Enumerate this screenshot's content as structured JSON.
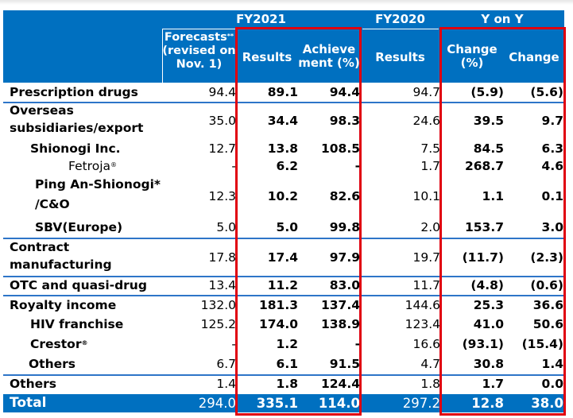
{
  "header": {
    "fy2021": "FY2021",
    "fy2020": "FY2020",
    "yony": "Y on Y",
    "forecasts_line1": "Forecasts",
    "forecasts_sup": "**",
    "forecasts_line2": "(revised on",
    "forecasts_line3": "Nov. 1)",
    "results": "Results",
    "achieve_line1": "Achieve",
    "achieve_line2": "ment (%)",
    "fy2020_results": "Results",
    "change_pct_line1": "Change",
    "change_pct_line2": "(%)",
    "change": "Change"
  },
  "rows": [
    {
      "label": "Prescription drugs",
      "forecast": "94.4",
      "results": "89.1",
      "achievement": "94.4",
      "fy2020": "94.7",
      "change_pct": "(5.9)",
      "change": "(5.6)"
    },
    {
      "label_line1": "Overseas",
      "label_line2": "subsidiaries/export",
      "forecast": "35.0",
      "results": "34.4",
      "achievement": "98.3",
      "fy2020": "24.6",
      "change_pct": "39.5",
      "change": "9.7"
    },
    {
      "label": "Shionogi Inc.",
      "forecast": "12.7",
      "results": "13.8",
      "achievement": "108.5",
      "fy2020": "7.5",
      "change_pct": "84.5",
      "change": "6.3"
    },
    {
      "label": "Fetroja",
      "label_sup": "®",
      "forecast": "-",
      "results": "6.2",
      "achievement": "-",
      "fy2020": "1.7",
      "change_pct": "268.7",
      "change": "4.6"
    },
    {
      "label_line1": "Ping An-Shionogi*",
      "label_line2": "/C&O",
      "forecast": "12.3",
      "results": "10.2",
      "achievement": "82.6",
      "fy2020": "10.1",
      "change_pct": "1.1",
      "change": "0.1"
    },
    {
      "label": "SBV(Europe)",
      "forecast": "5.0",
      "results": "5.0",
      "achievement": "99.8",
      "fy2020": "2.0",
      "change_pct": "153.7",
      "change": "3.0"
    },
    {
      "label_line1": "Contract",
      "label_line2": "manufacturing",
      "forecast": "17.8",
      "results": "17.4",
      "achievement": "97.9",
      "fy2020": "19.7",
      "change_pct": "(11.7)",
      "change": "(2.3)"
    },
    {
      "label": "OTC and quasi-drug",
      "forecast": "13.4",
      "results": "11.2",
      "achievement": "83.0",
      "fy2020": "11.7",
      "change_pct": "(4.8)",
      "change": "(0.6)"
    },
    {
      "label": "Royalty income",
      "forecast": "132.0",
      "results": "181.3",
      "achievement": "137.4",
      "fy2020": "144.6",
      "change_pct": "25.3",
      "change": "36.6"
    },
    {
      "label": "HIV franchise",
      "forecast": "125.2",
      "results": "174.0",
      "achievement": "138.9",
      "fy2020": "123.4",
      "change_pct": "41.0",
      "change": "50.6"
    },
    {
      "label": "Crestor",
      "label_sup": "®",
      "forecast": "-",
      "results": "1.2",
      "achievement": "-",
      "fy2020": "16.6",
      "change_pct": "(93.1)",
      "change": "(15.4)"
    },
    {
      "label": "Others",
      "forecast": "6.7",
      "results": "6.1",
      "achievement": "91.5",
      "fy2020": "4.7",
      "change_pct": "30.8",
      "change": "1.4"
    },
    {
      "label": "Others",
      "forecast": "1.4",
      "results": "1.8",
      "achievement": "124.4",
      "fy2020": "1.8",
      "change_pct": "1.7",
      "change": "0.0"
    },
    {
      "label": "Total",
      "forecast": "294.0",
      "results": "335.1",
      "achievement": "114.0",
      "fy2020": "297.2",
      "change_pct": "12.8",
      "change": "38.0"
    }
  ],
  "colors": {
    "header_blue": "#0070c0",
    "separator_blue": "#2e75c8",
    "highlight_red": "#e0000f"
  }
}
